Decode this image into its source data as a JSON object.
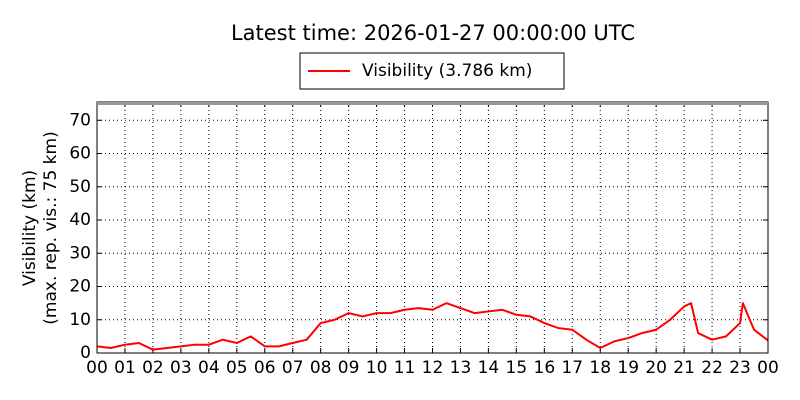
{
  "chart_data": {
    "type": "line",
    "title": "Latest time: 2026-01-27 00:00:00 UTC",
    "ylabel": [
      "Visibility (km)",
      "(max. rep. vis.: 75 km)"
    ],
    "x": [
      0,
      0.5,
      1,
      1.5,
      2,
      2.5,
      3,
      3.5,
      4,
      4.5,
      5,
      5.5,
      6,
      6.5,
      7,
      7.5,
      8,
      8.5,
      9,
      9.5,
      10,
      10.5,
      11,
      11.5,
      12,
      12.5,
      13,
      13.5,
      14,
      14.5,
      15,
      15.5,
      16,
      16.5,
      17,
      17.5,
      18,
      18.5,
      19,
      19.5,
      20,
      20.5,
      21,
      21.25,
      21.5,
      22,
      22.5,
      23,
      23.1,
      23.5,
      24
    ],
    "series": [
      {
        "name": "Visibility (3.786 km)",
        "color": "#ff0000",
        "values": [
          2,
          1.5,
          2.5,
          3,
          1,
          1.5,
          2,
          2.5,
          2.5,
          4,
          3,
          5,
          2,
          2,
          3,
          4,
          9,
          10,
          12,
          11,
          12,
          12,
          13,
          13.5,
          13,
          15,
          13.5,
          12,
          12.5,
          13,
          11.5,
          11,
          9,
          7.5,
          7,
          4,
          1.5,
          3.5,
          4.5,
          6,
          7,
          10,
          14,
          15,
          6,
          4,
          5,
          9,
          15,
          7,
          3.786
        ]
      }
    ],
    "xlim": [
      0,
      24
    ],
    "xticks": [
      {
        "value": 0,
        "label": "00"
      },
      {
        "value": 1,
        "label": "01"
      },
      {
        "value": 2,
        "label": "02"
      },
      {
        "value": 3,
        "label": "03"
      },
      {
        "value": 4,
        "label": "04"
      },
      {
        "value": 5,
        "label": "05"
      },
      {
        "value": 6,
        "label": "06"
      },
      {
        "value": 7,
        "label": "07"
      },
      {
        "value": 8,
        "label": "08"
      },
      {
        "value": 9,
        "label": "09"
      },
      {
        "value": 10,
        "label": "10"
      },
      {
        "value": 11,
        "label": "11"
      },
      {
        "value": 12,
        "label": "12"
      },
      {
        "value": 13,
        "label": "13"
      },
      {
        "value": 14,
        "label": "14"
      },
      {
        "value": 15,
        "label": "15"
      },
      {
        "value": 16,
        "label": "16"
      },
      {
        "value": 17,
        "label": "17"
      },
      {
        "value": 18,
        "label": "18"
      },
      {
        "value": 19,
        "label": "19"
      },
      {
        "value": 20,
        "label": "20"
      },
      {
        "value": 21,
        "label": "21"
      },
      {
        "value": 22,
        "label": "22"
      },
      {
        "value": 23,
        "label": "23"
      },
      {
        "value": 24,
        "label": "00"
      }
    ],
    "ylim": [
      0,
      75.5
    ],
    "yticks": [
      0,
      10,
      20,
      30,
      40,
      50,
      60,
      70
    ],
    "grid": true,
    "legend": "top"
  }
}
